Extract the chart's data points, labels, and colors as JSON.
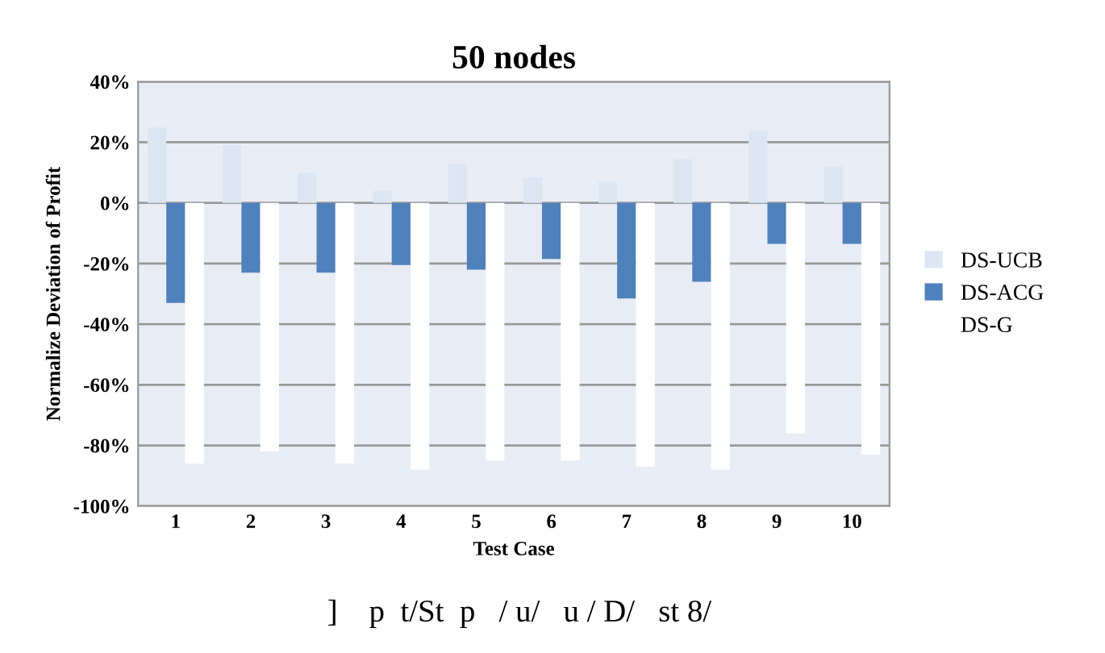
{
  "chart_data": {
    "type": "bar",
    "title": "50 nodes",
    "xlabel": "Test Case",
    "ylabel": "Normalize Deviation of Profit",
    "categories": [
      "1",
      "2",
      "3",
      "4",
      "5",
      "6",
      "7",
      "8",
      "9",
      "10"
    ],
    "series": [
      {
        "name": "DS-UCB",
        "color": "#dce6f2",
        "values": [
          25,
          19,
          10,
          4,
          13,
          8.5,
          7,
          14.5,
          24,
          12
        ]
      },
      {
        "name": "DS-ACG",
        "color": "#4f81bd",
        "values": [
          -33,
          -23,
          -23,
          -20.5,
          -22,
          -18.5,
          -31.5,
          -26,
          -13.5,
          -13.5
        ]
      },
      {
        "name": "DS-G",
        "color": "#ffffff",
        "values": [
          -86,
          -82,
          -86,
          -88,
          -85,
          -85,
          -87,
          -88,
          -76,
          -83
        ]
      }
    ],
    "ylim": [
      -100,
      40
    ],
    "yticks": [
      {
        "value": -100,
        "label": "-100%"
      },
      {
        "value": -80,
        "label": "-80%"
      },
      {
        "value": -60,
        "label": "-60%"
      },
      {
        "value": -40,
        "label": "-40%"
      },
      {
        "value": -20,
        "label": "-20%"
      },
      {
        "value": 0,
        "label": "0%"
      },
      {
        "value": 20,
        "label": "20%"
      },
      {
        "value": 40,
        "label": "40%"
      }
    ],
    "grid": "y",
    "legend": "right",
    "annotations": [
      "]    p  t/St  p   / u/   u / D/   st 8/"
    ]
  }
}
